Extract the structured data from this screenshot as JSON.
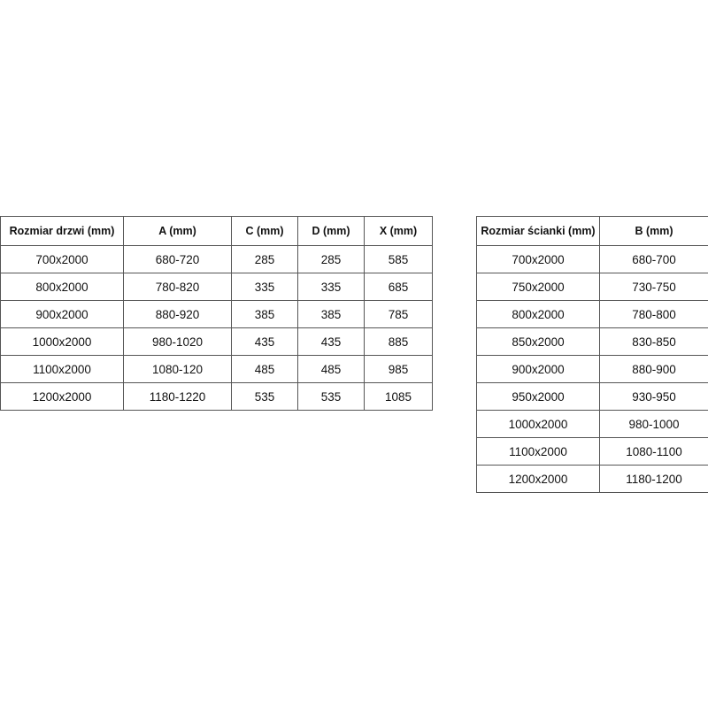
{
  "door_table": {
    "header": [
      "Rozmiar drzwi (mm)",
      "A (mm)",
      "C (mm)",
      "D (mm)",
      "X (mm)"
    ],
    "rows": [
      [
        "700x2000",
        "680-720",
        "285",
        "285",
        "585"
      ],
      [
        "800x2000",
        "780-820",
        "335",
        "335",
        "685"
      ],
      [
        "900x2000",
        "880-920",
        "385",
        "385",
        "785"
      ],
      [
        "1000x2000",
        "980-1020",
        "435",
        "435",
        "885"
      ],
      [
        "1100x2000",
        "1080-120",
        "485",
        "485",
        "985"
      ],
      [
        "1200x2000",
        "1180-1220",
        "535",
        "535",
        "1085"
      ]
    ]
  },
  "wall_table": {
    "header": [
      "Rozmiar ścianki (mm)",
      "B (mm)"
    ],
    "rows": [
      [
        "700x2000",
        "680-700"
      ],
      [
        "750x2000",
        "730-750"
      ],
      [
        "800x2000",
        "780-800"
      ],
      [
        "850x2000",
        "830-850"
      ],
      [
        "900x2000",
        "880-900"
      ],
      [
        "950x2000",
        "930-950"
      ],
      [
        "1000x2000",
        "980-1000"
      ],
      [
        "1100x2000",
        "1080-1100"
      ],
      [
        "1200x2000",
        "1180-1200"
      ]
    ]
  }
}
